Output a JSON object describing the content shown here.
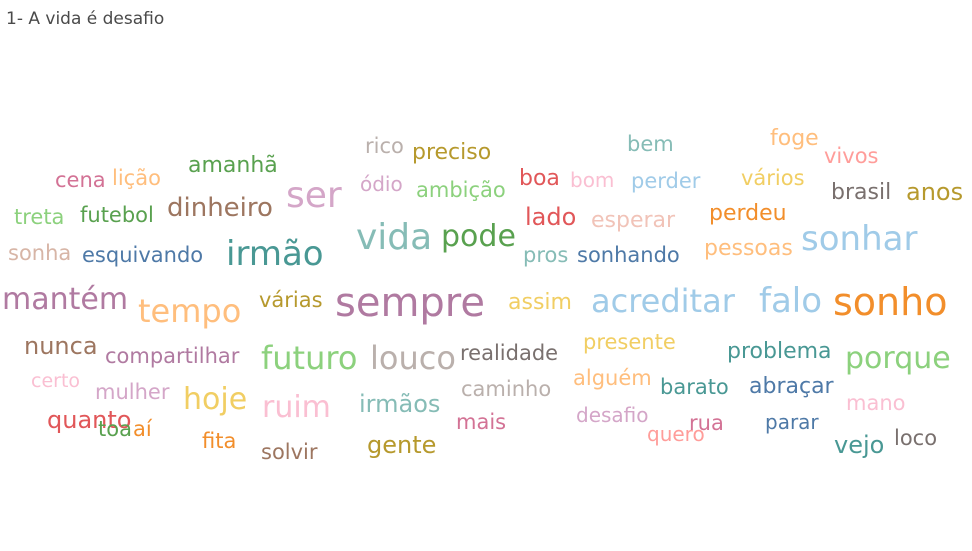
{
  "title": "1- A vida é desafio",
  "chart_data": {
    "type": "wordcloud",
    "words": [
      {
        "text": "rico",
        "color": "#bab0ac"
      },
      {
        "text": "preciso",
        "color": "#b6992d"
      },
      {
        "text": "bem",
        "color": "#86bcb6"
      },
      {
        "text": "foge",
        "color": "#ffbe7d"
      },
      {
        "text": "vivos",
        "color": "#ff9d9a"
      },
      {
        "text": "cena",
        "color": "#d37295"
      },
      {
        "text": "lição",
        "color": "#ffbe7d"
      },
      {
        "text": "amanhã",
        "color": "#59a14f"
      },
      {
        "text": "ser",
        "color": "#d4a6c8"
      },
      {
        "text": "ódio",
        "color": "#d4a6c8"
      },
      {
        "text": "ambição",
        "color": "#8cd17d"
      },
      {
        "text": "boa",
        "color": "#e15759"
      },
      {
        "text": "bom",
        "color": "#fabfd2"
      },
      {
        "text": "perder",
        "color": "#a0cbe8"
      },
      {
        "text": "vários",
        "color": "#f1ce63"
      },
      {
        "text": "brasil",
        "color": "#79706e"
      },
      {
        "text": "anos",
        "color": "#b6992d"
      },
      {
        "text": "treta",
        "color": "#8cd17d"
      },
      {
        "text": "futebol",
        "color": "#59a14f"
      },
      {
        "text": "dinheiro",
        "color": "#9d7660"
      },
      {
        "text": "lado",
        "color": "#e15759"
      },
      {
        "text": "esperar",
        "color": "#f1c3b8"
      },
      {
        "text": "perdeu",
        "color": "#f28e2b"
      },
      {
        "text": "vida",
        "color": "#86bcb6"
      },
      {
        "text": "pode",
        "color": "#59a14f"
      },
      {
        "text": "sonhar",
        "color": "#a0cbe8"
      },
      {
        "text": "sonha",
        "color": "#d7b5a6"
      },
      {
        "text": "esquivando",
        "color": "#4e79a7"
      },
      {
        "text": "irmão",
        "color": "#499894"
      },
      {
        "text": "pros",
        "color": "#86bcb6"
      },
      {
        "text": "sonhando",
        "color": "#4e79a7"
      },
      {
        "text": "pessoas",
        "color": "#ffbe7d"
      },
      {
        "text": "mantém",
        "color": "#b07aa1"
      },
      {
        "text": "tempo",
        "color": "#ffbe7d"
      },
      {
        "text": "várias",
        "color": "#b6992d"
      },
      {
        "text": "sempre",
        "color": "#b07aa1"
      },
      {
        "text": "assim",
        "color": "#f1ce63"
      },
      {
        "text": "acreditar",
        "color": "#a0cbe8"
      },
      {
        "text": "falo",
        "color": "#a0cbe8"
      },
      {
        "text": "sonho",
        "color": "#f28e2b"
      },
      {
        "text": "nunca",
        "color": "#9d7660"
      },
      {
        "text": "compartilhar",
        "color": "#b07aa1"
      },
      {
        "text": "futuro",
        "color": "#8cd17d"
      },
      {
        "text": "louco",
        "color": "#bab0ac"
      },
      {
        "text": "realidade",
        "color": "#79706e"
      },
      {
        "text": "presente",
        "color": "#f1ce63"
      },
      {
        "text": "problema",
        "color": "#499894"
      },
      {
        "text": "porque",
        "color": "#8cd17d"
      },
      {
        "text": "certo",
        "color": "#fabfd2"
      },
      {
        "text": "mulher",
        "color": "#d4a6c8"
      },
      {
        "text": "hoje",
        "color": "#f1ce63"
      },
      {
        "text": "ruim",
        "color": "#fabfd2"
      },
      {
        "text": "irmãos",
        "color": "#86bcb6"
      },
      {
        "text": "caminho",
        "color": "#bab0ac"
      },
      {
        "text": "alguém",
        "color": "#ffbe7d"
      },
      {
        "text": "barato",
        "color": "#499894"
      },
      {
        "text": "abraçar",
        "color": "#4e79a7"
      },
      {
        "text": "quanto",
        "color": "#e15759"
      },
      {
        "text": "toa",
        "color": "#59a14f"
      },
      {
        "text": "aí",
        "color": "#f28e2b"
      },
      {
        "text": "fita",
        "color": "#f28e2b"
      },
      {
        "text": "mais",
        "color": "#d37295"
      },
      {
        "text": "desafio",
        "color": "#d4a6c8"
      },
      {
        "text": "quero",
        "color": "#ff9d9a"
      },
      {
        "text": "rua",
        "color": "#d37295"
      },
      {
        "text": "parar",
        "color": "#4e79a7"
      },
      {
        "text": "mano",
        "color": "#fabfd2"
      },
      {
        "text": "vejo",
        "color": "#499894"
      },
      {
        "text": "loco",
        "color": "#79706e"
      },
      {
        "text": "solvir",
        "color": "#9d7660"
      },
      {
        "text": "gente",
        "color": "#b6992d"
      }
    ]
  }
}
